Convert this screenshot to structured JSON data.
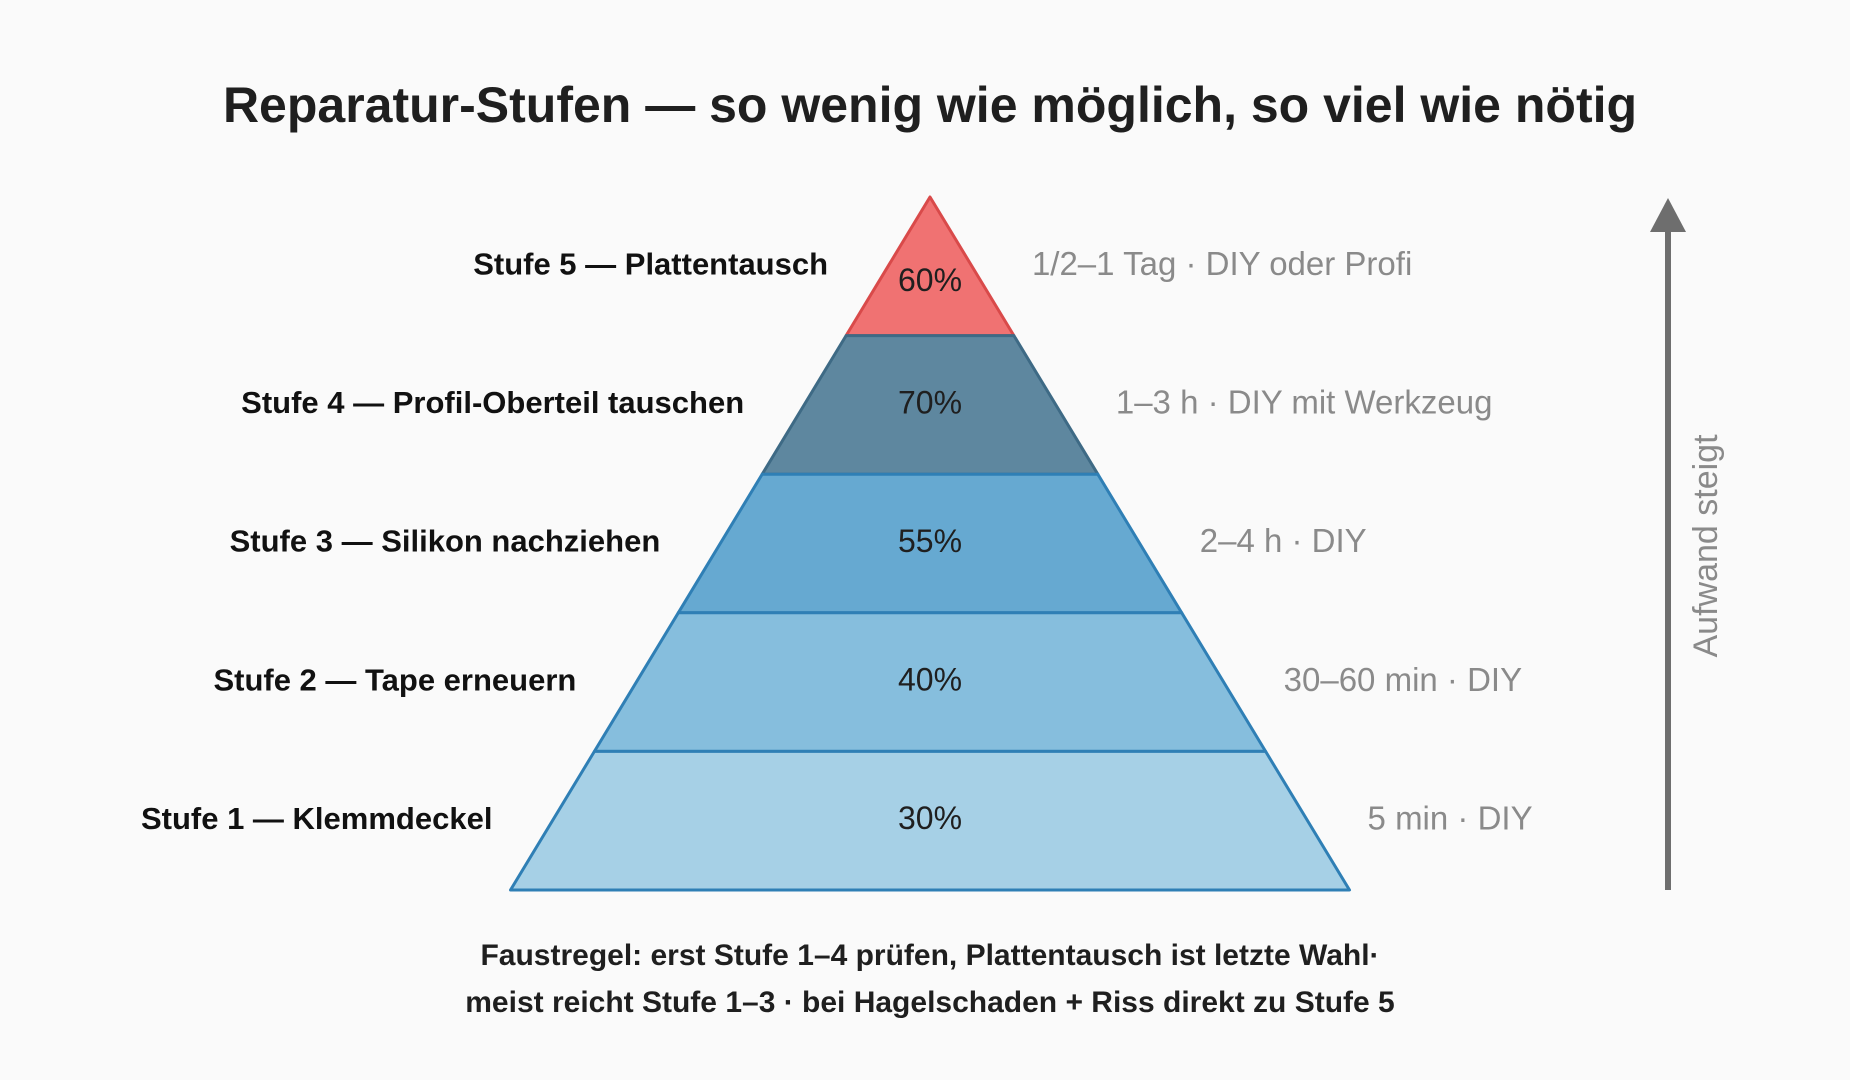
{
  "title": "Reparatur-Stufen — so wenig wie möglich, so viel wie nötig",
  "levels": [
    {
      "label": "Stufe 5 — Plattentausch",
      "percent": "60%",
      "effort": "1/2–1 Tag · DIY oder Profi"
    },
    {
      "label": "Stufe 4 — Profil-Oberteil tauschen",
      "percent": "70%",
      "effort": "1–3 h · DIY mit Werkzeug"
    },
    {
      "label": "Stufe 3 — Silikon nachziehen",
      "percent": "55%",
      "effort": "2–4 h · DIY"
    },
    {
      "label": "Stufe 2 — Tape erneuern",
      "percent": "40%",
      "effort": "30–60 min · DIY"
    },
    {
      "label": "Stufe 1 — Klemmdeckel",
      "percent": "30%",
      "effort": "5 min · DIY"
    }
  ],
  "axis_label": "Aufwand steigt",
  "footer": [
    "Faustregel: erst Stufe 1–4 prüfen, Plattentausch ist letzte Wahl·",
    "meist reicht Stufe 1–3 · bei Hagelschaden + Riss direkt zu Stufe 5"
  ]
}
